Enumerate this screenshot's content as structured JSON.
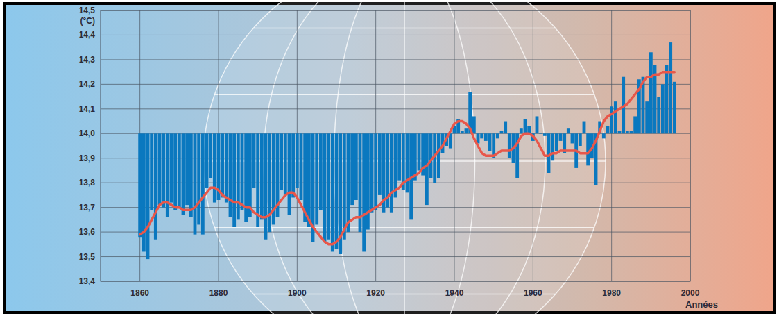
{
  "chart_data": {
    "type": "bar",
    "x": [
      1860,
      1861,
      1862,
      1863,
      1864,
      1865,
      1866,
      1867,
      1868,
      1869,
      1870,
      1871,
      1872,
      1873,
      1874,
      1875,
      1876,
      1877,
      1878,
      1879,
      1880,
      1881,
      1882,
      1883,
      1884,
      1885,
      1886,
      1887,
      1888,
      1889,
      1890,
      1891,
      1892,
      1893,
      1894,
      1895,
      1896,
      1897,
      1898,
      1899,
      1900,
      1901,
      1902,
      1903,
      1904,
      1905,
      1906,
      1907,
      1908,
      1909,
      1910,
      1911,
      1912,
      1913,
      1914,
      1915,
      1916,
      1917,
      1918,
      1919,
      1920,
      1921,
      1922,
      1923,
      1924,
      1925,
      1926,
      1927,
      1928,
      1929,
      1930,
      1931,
      1932,
      1933,
      1934,
      1935,
      1936,
      1937,
      1938,
      1939,
      1940,
      1941,
      1942,
      1943,
      1944,
      1945,
      1946,
      1947,
      1948,
      1949,
      1950,
      1951,
      1952,
      1953,
      1954,
      1955,
      1956,
      1957,
      1958,
      1959,
      1960,
      1961,
      1962,
      1963,
      1964,
      1965,
      1966,
      1967,
      1968,
      1969,
      1970,
      1971,
      1972,
      1973,
      1974,
      1975,
      1976,
      1977,
      1978,
      1979,
      1980,
      1981,
      1982,
      1983,
      1984,
      1985,
      1986,
      1987,
      1988,
      1989,
      1990,
      1991,
      1992,
      1993,
      1994,
      1995,
      1996
    ],
    "series": [
      {
        "type": "bar",
        "color": "#0a78bf",
        "values": [
          13.58,
          13.52,
          13.49,
          13.69,
          13.57,
          13.71,
          13.7,
          13.66,
          13.72,
          13.69,
          13.7,
          13.67,
          13.71,
          13.66,
          13.59,
          13.63,
          13.59,
          13.78,
          13.82,
          13.72,
          13.73,
          13.74,
          13.72,
          13.66,
          13.62,
          13.65,
          13.69,
          13.64,
          13.66,
          13.78,
          13.62,
          13.65,
          13.57,
          13.6,
          13.63,
          13.66,
          13.77,
          13.75,
          13.67,
          13.74,
          13.78,
          13.73,
          13.64,
          13.62,
          13.56,
          13.63,
          13.69,
          13.56,
          13.57,
          13.52,
          13.53,
          13.51,
          13.57,
          13.6,
          13.71,
          13.73,
          13.6,
          13.52,
          13.61,
          13.68,
          13.69,
          13.75,
          13.68,
          13.7,
          13.68,
          13.74,
          13.81,
          13.77,
          13.76,
          13.65,
          13.81,
          13.85,
          13.83,
          13.71,
          13.82,
          13.8,
          13.82,
          13.92,
          13.95,
          13.94,
          14.03,
          14.06,
          14.01,
          14.02,
          14.17,
          14.07,
          13.96,
          13.98,
          13.97,
          13.93,
          13.9,
          13.98,
          14.01,
          14.05,
          13.9,
          13.88,
          13.82,
          14.02,
          14.06,
          14.03,
          13.97,
          14.07,
          14.0,
          13.99,
          13.84,
          13.89,
          13.93,
          13.97,
          13.92,
          14.02,
          13.96,
          13.86,
          13.95,
          14.05,
          13.87,
          13.9,
          13.79,
          14.05,
          13.98,
          14.03,
          14.11,
          14.13,
          14.01,
          14.23,
          14.01,
          14.01,
          14.07,
          14.22,
          14.23,
          14.13,
          14.33,
          14.28,
          14.15,
          14.2,
          14.28,
          14.37,
          14.21
        ]
      },
      {
        "type": "line",
        "color": "#e8574a",
        "values": [
          13.59,
          13.6,
          13.62,
          13.65,
          13.68,
          13.71,
          13.72,
          13.72,
          13.71,
          13.7,
          13.7,
          13.69,
          13.69,
          13.69,
          13.7,
          13.72,
          13.74,
          13.76,
          13.78,
          13.78,
          13.77,
          13.75,
          13.74,
          13.73,
          13.72,
          13.72,
          13.71,
          13.7,
          13.7,
          13.68,
          13.67,
          13.66,
          13.66,
          13.67,
          13.69,
          13.71,
          13.73,
          13.75,
          13.76,
          13.76,
          13.74,
          13.71,
          13.68,
          13.65,
          13.62,
          13.6,
          13.58,
          13.56,
          13.55,
          13.55,
          13.56,
          13.58,
          13.61,
          13.64,
          13.65,
          13.66,
          13.66,
          13.67,
          13.68,
          13.69,
          13.7,
          13.71,
          13.73,
          13.74,
          13.76,
          13.77,
          13.78,
          13.8,
          13.81,
          13.82,
          13.83,
          13.84,
          13.86,
          13.87,
          13.89,
          13.91,
          13.93,
          13.95,
          13.98,
          14.01,
          14.04,
          14.05,
          14.05,
          14.04,
          14.02,
          13.98,
          13.95,
          13.92,
          13.91,
          13.91,
          13.91,
          13.92,
          13.93,
          13.93,
          13.93,
          13.94,
          13.96,
          13.99,
          14.0,
          14.0,
          13.99,
          13.97,
          13.94,
          13.91,
          13.91,
          13.92,
          13.92,
          13.93,
          13.93,
          13.93,
          13.93,
          13.93,
          13.92,
          13.92,
          13.92,
          13.94,
          13.97,
          14.01,
          14.05,
          14.07,
          14.08,
          14.09,
          14.1,
          14.11,
          14.12,
          14.14,
          14.16,
          14.18,
          14.21,
          14.23,
          14.23,
          14.24,
          14.24,
          14.25,
          14.25,
          14.25,
          14.25
        ]
      }
    ],
    "baseline": 14.0,
    "xlim": [
      1850,
      2000
    ],
    "ylim": [
      13.4,
      14.5
    ],
    "xticks": [
      1860,
      1880,
      1900,
      1920,
      1940,
      1960,
      1980,
      2000
    ],
    "yticks": [
      {
        "value": 13.4,
        "label": "13,4"
      },
      {
        "value": 13.5,
        "label": "13,5"
      },
      {
        "value": 13.6,
        "label": "13,6"
      },
      {
        "value": 13.7,
        "label": "13,7"
      },
      {
        "value": 13.8,
        "label": "13,8"
      },
      {
        "value": 13.9,
        "label": "13,9"
      },
      {
        "value": 14.0,
        "label": "14,0"
      },
      {
        "value": 14.1,
        "label": "14,1"
      },
      {
        "value": 14.2,
        "label": "14,2"
      },
      {
        "value": 14.3,
        "label": "14,3"
      },
      {
        "value": 14.4,
        "label": "14,4"
      },
      {
        "value": 14.5,
        "label": "14,5"
      }
    ],
    "y_label": "(°C)",
    "x_label": "Années",
    "grid": true
  }
}
